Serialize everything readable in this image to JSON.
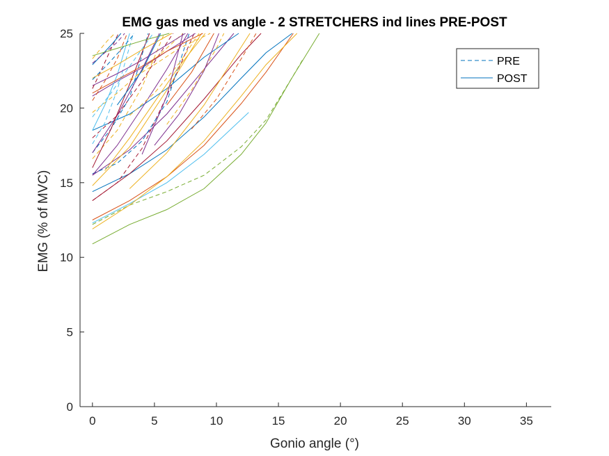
{
  "chart_data": {
    "type": "line",
    "title": "EMG gas med vs angle - 2 STRETCHERS ind lines PRE-POST",
    "xlabel": "Gonio angle (°)",
    "ylabel": "EMG (% of MVC)",
    "xlim": [
      -1,
      37
    ],
    "ylim": [
      0,
      25
    ],
    "xticks": [
      0,
      5,
      10,
      15,
      20,
      25,
      30,
      35
    ],
    "yticks": [
      0,
      5,
      10,
      15,
      20,
      25
    ],
    "grid": false,
    "legend": {
      "placement": "top-right",
      "entries": [
        {
          "label": "PRE",
          "style": "dashed"
        },
        {
          "label": "POST",
          "style": "solid"
        }
      ]
    },
    "colors": [
      "#0072BD",
      "#D95319",
      "#EDB120",
      "#7E2F8E",
      "#77AC30",
      "#4DBEEE",
      "#A2142F"
    ],
    "series": [
      {
        "group": "POST",
        "color_index": 4,
        "x": [
          0,
          3,
          6,
          9,
          12,
          14,
          16,
          18.3
        ],
        "y": [
          10.9,
          12.2,
          13.2,
          14.6,
          16.9,
          19.0,
          21.9,
          25.0
        ]
      },
      {
        "group": "PRE",
        "color_index": 4,
        "x": [
          0,
          3,
          6,
          9,
          12,
          14,
          16,
          17
        ],
        "y": [
          12.2,
          13.5,
          14.4,
          15.5,
          17.4,
          19.2,
          21.9,
          23.3
        ]
      },
      {
        "group": "POST",
        "color_index": 5,
        "x": [
          0,
          3,
          6,
          9,
          12.6
        ],
        "y": [
          12.3,
          13.6,
          15.0,
          16.9,
          19.7
        ]
      },
      {
        "group": "POST",
        "color_index": 1,
        "x": [
          0,
          3,
          6,
          9,
          12,
          14,
          16.2
        ],
        "y": [
          12.5,
          13.8,
          15.4,
          17.5,
          20.3,
          22.4,
          25.0
        ]
      },
      {
        "group": "POST",
        "color_index": 2,
        "x": [
          0,
          3,
          6,
          9,
          12,
          14,
          16.5
        ],
        "y": [
          11.9,
          13.5,
          15.4,
          17.8,
          20.8,
          22.9,
          25.0
        ]
      },
      {
        "group": "POST",
        "color_index": 0,
        "x": [
          0,
          3,
          6,
          9,
          12,
          14,
          16.1
        ],
        "y": [
          14.4,
          15.6,
          17.2,
          19.4,
          22.0,
          23.7,
          25.0
        ]
      },
      {
        "group": "POST",
        "color_index": 6,
        "x": [
          0,
          3,
          6,
          9,
          12,
          13.6
        ],
        "y": [
          13.8,
          15.6,
          17.8,
          20.6,
          23.6,
          25.0
        ]
      },
      {
        "group": "POST",
        "color_index": 3,
        "x": [
          0,
          3,
          6,
          9,
          11.4
        ],
        "y": [
          15.5,
          17.2,
          19.6,
          22.6,
          25.0
        ]
      },
      {
        "group": "POST",
        "color_index": 0,
        "x": [
          0,
          3,
          6,
          9,
          11.8
        ],
        "y": [
          18.5,
          19.6,
          21.3,
          23.4,
          25.0
        ]
      },
      {
        "group": "POST",
        "color_index": 2,
        "x": [
          0,
          3,
          6,
          8.8
        ],
        "y": [
          14.8,
          17.4,
          21.2,
          25.0
        ]
      },
      {
        "group": "PRE",
        "color_index": 6,
        "x": [
          0,
          2,
          4,
          6,
          8.2
        ],
        "y": [
          13.8,
          15.0,
          17.3,
          20.8,
          25.0
        ]
      },
      {
        "group": "PRE",
        "color_index": 0,
        "x": [
          0,
          2,
          4,
          6,
          7.8
        ],
        "y": [
          15.6,
          16.3,
          17.8,
          20.4,
          25.0
        ]
      },
      {
        "group": "POST",
        "color_index": 3,
        "x": [
          0,
          2,
          4,
          6,
          7.7
        ],
        "y": [
          15.5,
          17.5,
          20.0,
          22.6,
          25.0
        ]
      },
      {
        "group": "POST",
        "color_index": 3,
        "x": [
          0,
          2,
          4,
          6,
          8.3
        ],
        "y": [
          20.8,
          21.8,
          22.7,
          23.8,
          25.0
        ]
      },
      {
        "group": "PRE",
        "color_index": 2,
        "x": [
          0,
          2,
          4,
          5.8
        ],
        "y": [
          16.6,
          18.5,
          21.4,
          25.0
        ]
      },
      {
        "group": "PRE",
        "color_index": 6,
        "x": [
          0,
          2,
          4,
          6.5
        ],
        "y": [
          18.0,
          19.5,
          21.8,
          25.0
        ]
      },
      {
        "group": "PRE",
        "color_index": 2,
        "x": [
          0,
          2,
          4,
          7.3
        ],
        "y": [
          19.7,
          21.0,
          22.5,
          25.0
        ]
      },
      {
        "group": "PRE",
        "color_index": 0,
        "x": [
          0,
          1.5,
          3,
          4.5
        ],
        "y": [
          17.0,
          18.6,
          20.7,
          25.0
        ]
      },
      {
        "group": "PRE",
        "color_index": 5,
        "x": [
          0,
          1,
          2,
          3.3
        ],
        "y": [
          17.6,
          19.0,
          21.2,
          25.0
        ]
      },
      {
        "group": "POST",
        "color_index": 5,
        "x": [
          0,
          1,
          2,
          3
        ],
        "y": [
          18.5,
          20.2,
          22.2,
          25.0
        ]
      },
      {
        "group": "POST",
        "color_index": 3,
        "x": [
          0,
          2,
          4,
          7.5
        ],
        "y": [
          21.5,
          22.3,
          23.2,
          25.0
        ]
      },
      {
        "group": "PRE",
        "color_index": 1,
        "x": [
          0,
          1,
          2,
          2.8
        ],
        "y": [
          20.5,
          21.8,
          23.3,
          25.0
        ]
      },
      {
        "group": "PRE",
        "color_index": 6,
        "x": [
          0,
          0.7,
          1.4,
          2.1
        ],
        "y": [
          21.3,
          22.5,
          23.8,
          25.0
        ]
      },
      {
        "group": "POST",
        "color_index": 0,
        "x": [
          0,
          0.8,
          1.6,
          2.3
        ],
        "y": [
          22.9,
          23.6,
          24.3,
          25.0
        ]
      },
      {
        "group": "PRE",
        "color_index": 2,
        "x": [
          0,
          0.6,
          1.2,
          1.8
        ],
        "y": [
          23.3,
          23.9,
          24.5,
          25.0
        ]
      },
      {
        "group": "POST",
        "color_index": 3,
        "x": [
          0,
          2,
          4,
          5.4
        ],
        "y": [
          17.0,
          19.5,
          22.6,
          25.0
        ]
      },
      {
        "group": "POST",
        "color_index": 6,
        "x": [
          0,
          1.5,
          3,
          4.6
        ],
        "y": [
          16.0,
          18.6,
          21.6,
          25.0
        ]
      },
      {
        "group": "PRE",
        "color_index": 5,
        "x": [
          0,
          1.5,
          3,
          4.9
        ],
        "y": [
          19.4,
          21.0,
          22.8,
          25.0
        ]
      },
      {
        "group": "POST",
        "color_index": 2,
        "x": [
          0,
          2,
          4,
          6.4
        ],
        "y": [
          22.0,
          22.9,
          23.9,
          25.0
        ]
      },
      {
        "group": "PRE",
        "color_index": 0,
        "x": [
          0,
          1.2,
          2.4,
          3.4
        ],
        "y": [
          21.9,
          22.9,
          24.0,
          25.0
        ]
      },
      {
        "group": "POST",
        "color_index": 1,
        "x": [
          0,
          2,
          4,
          6,
          8.9
        ],
        "y": [
          21.0,
          21.9,
          22.8,
          23.8,
          25.0
        ]
      },
      {
        "group": "POST",
        "color_index": 4,
        "x": [
          0,
          2,
          4,
          6.2
        ],
        "y": [
          23.5,
          24.0,
          24.5,
          25.0
        ]
      },
      {
        "group": "PRE",
        "color_index": 3,
        "x": [
          0,
          1,
          2,
          2.6
        ],
        "y": [
          23.0,
          23.7,
          24.4,
          25.0
        ]
      },
      {
        "group": "POST",
        "color_index": 2,
        "x": [
          3,
          6,
          9,
          12.7
        ],
        "y": [
          14.6,
          17.0,
          20.2,
          25.0
        ]
      },
      {
        "group": "PRE",
        "color_index": 2,
        "x": [
          6,
          8,
          10,
          10.6
        ],
        "y": [
          18.9,
          21.2,
          24.0,
          25.0
        ]
      },
      {
        "group": "PRE",
        "color_index": 1,
        "x": [
          8,
          10,
          12,
          13.2
        ],
        "y": [
          18.6,
          20.6,
          23.3,
          25.0
        ]
      },
      {
        "group": "PRE",
        "color_index": 2,
        "x": [
          3,
          5,
          7,
          8.6
        ],
        "y": [
          19.5,
          21.0,
          23.0,
          25.0
        ]
      },
      {
        "group": "POST",
        "color_index": 3,
        "x": [
          5,
          7,
          9,
          10.2
        ],
        "y": [
          17.5,
          19.6,
          22.5,
          25.0
        ]
      },
      {
        "group": "POST",
        "color_index": 0,
        "x": [
          2,
          4,
          5.5
        ],
        "y": [
          20.2,
          22.5,
          25.0
        ]
      },
      {
        "group": "POST",
        "color_index": 2,
        "x": [
          1,
          3,
          5,
          7,
          9.1
        ],
        "y": [
          15.8,
          18.0,
          20.4,
          22.8,
          25.0
        ]
      },
      {
        "group": "PRE",
        "color_index": 2,
        "x": [
          3,
          5,
          7,
          9.5
        ],
        "y": [
          21.9,
          22.9,
          24.0,
          25.0
        ]
      },
      {
        "group": "POST",
        "color_index": 3,
        "x": [
          4,
          6,
          7.3
        ],
        "y": [
          16.9,
          20.8,
          25.0
        ]
      },
      {
        "group": "POST",
        "color_index": 1,
        "x": [
          6,
          8,
          9.8
        ],
        "y": [
          20.2,
          22.4,
          25.0
        ]
      }
    ]
  }
}
